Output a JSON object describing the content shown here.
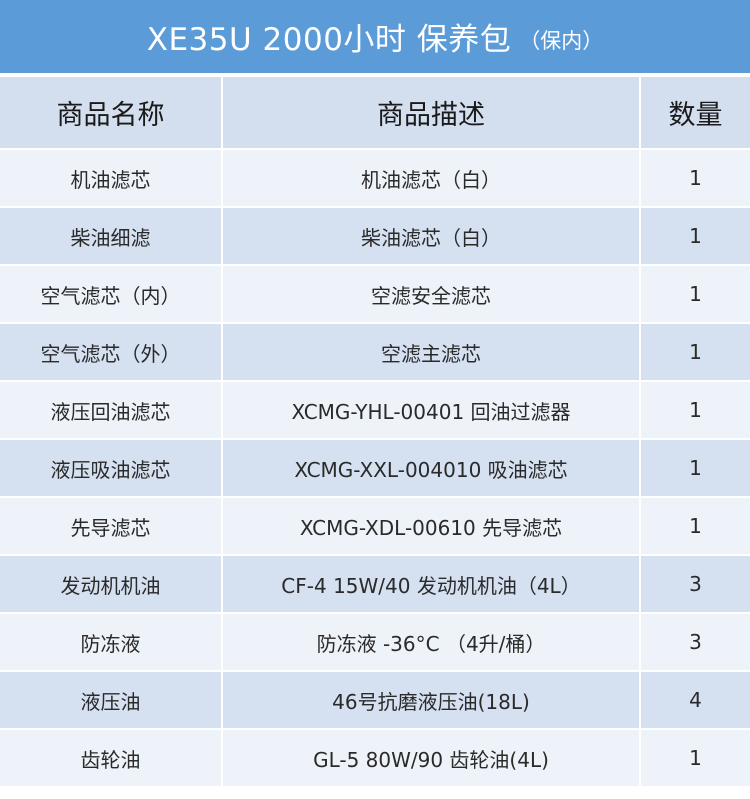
{
  "colors": {
    "banner": "#5b9bd8",
    "header_row": "#d3deef",
    "row_light": "#eef2f9",
    "row_dark": "#d5e0f0"
  },
  "banner": {
    "title": "XE35U 2000小时 保养包",
    "subtitle": "（保内）"
  },
  "table": {
    "headers": [
      "商品名称",
      "商品描述",
      "数量"
    ],
    "rows": [
      [
        "机油滤芯",
        "机油滤芯（白）",
        "1"
      ],
      [
        "柴油细滤",
        "柴油滤芯（白）",
        "1"
      ],
      [
        "空气滤芯（内）",
        "空滤安全滤芯",
        "1"
      ],
      [
        "空气滤芯（外）",
        "空滤主滤芯",
        "1"
      ],
      [
        "液压回油滤芯",
        "XCMG-YHL-00401 回油过滤器",
        "1"
      ],
      [
        "液压吸油滤芯",
        "XCMG-XXL-004010 吸油滤芯",
        "1"
      ],
      [
        "先导滤芯",
        "XCMG-XDL-00610 先导滤芯",
        "1"
      ],
      [
        "发动机机油",
        "CF-4 15W/40 发动机机油（4L）",
        "3"
      ],
      [
        "防冻液",
        "防冻液 -36°C （4升/桶）",
        "3"
      ],
      [
        "液压油",
        "46号抗磨液压油(18L)",
        "4"
      ],
      [
        "齿轮油",
        "GL-5 80W/90 齿轮油(4L)",
        "1"
      ]
    ]
  }
}
